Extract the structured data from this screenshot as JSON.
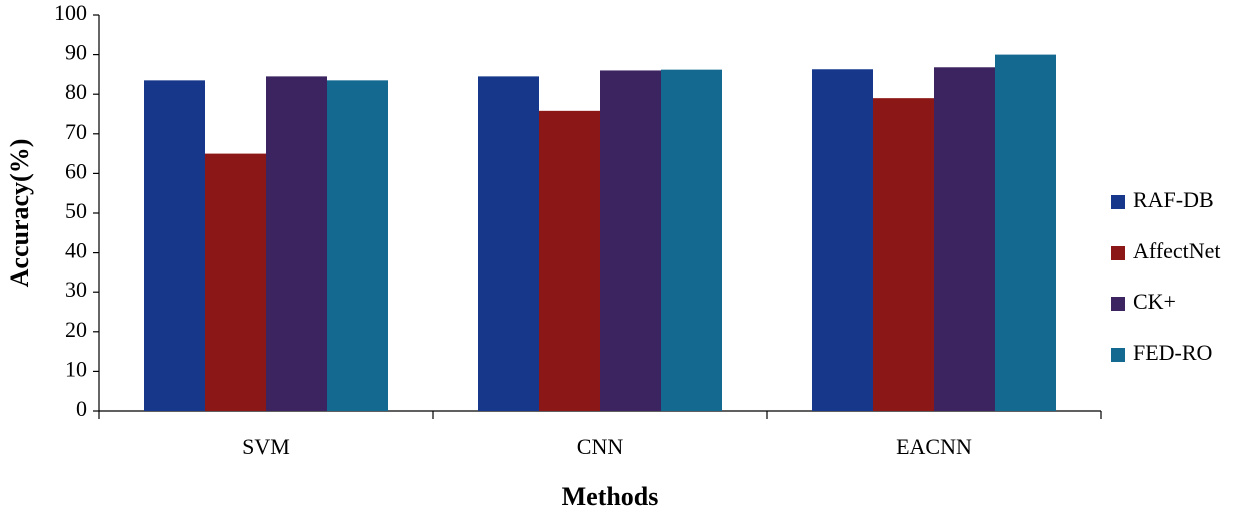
{
  "chart_data": {
    "type": "bar",
    "x_label": "Methods",
    "y_label": "Accuracy(%)",
    "categories": [
      "SVM",
      "CNN",
      "EACNN"
    ],
    "series": [
      {
        "name": "RAF-DB",
        "color": "#17388a",
        "values": [
          83.5,
          84.5,
          86.3
        ]
      },
      {
        "name": "AffectNet",
        "color": "#8b1717",
        "values": [
          65,
          75.8,
          79
        ]
      },
      {
        "name": "CK+",
        "color": "#3b2460",
        "values": [
          84.5,
          86,
          86.8
        ]
      },
      {
        "name": "FED-RO",
        "color": "#136990",
        "values": [
          83.5,
          86.2,
          90
        ]
      }
    ],
    "ylim": [
      0,
      100
    ],
    "yticks": [
      0,
      10,
      20,
      30,
      40,
      50,
      60,
      70,
      80,
      90,
      100
    ],
    "grid": false,
    "legend": "right"
  }
}
